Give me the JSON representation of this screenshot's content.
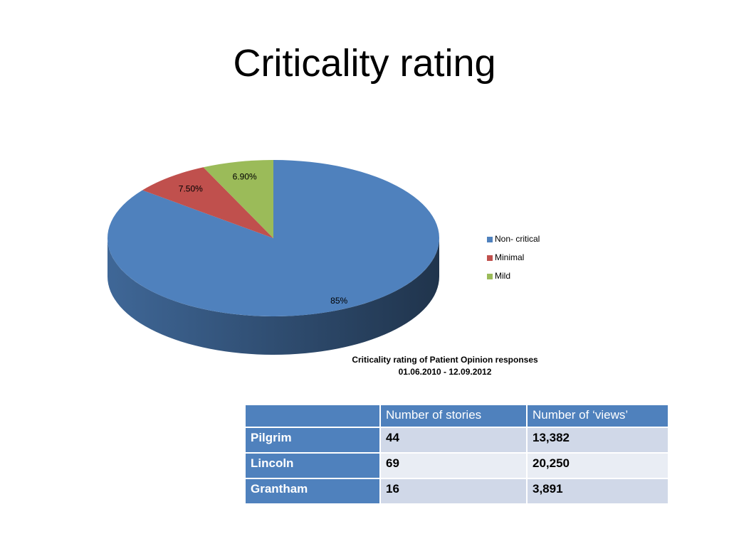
{
  "title": "Criticality rating",
  "chart_data": {
    "type": "pie",
    "categories": [
      "Non- critical",
      "Minimal",
      "Mild"
    ],
    "values": [
      85,
      7.5,
      6.9
    ],
    "value_labels": [
      "85%",
      "7.50%",
      "6.90%"
    ],
    "colors": [
      "#4f81bd",
      "#c0504d",
      "#9bbb59"
    ],
    "caption": [
      "Criticality rating of Patient Opinion responses",
      "01.06.2010 - 12.09.2012"
    ],
    "legend": "right"
  },
  "table": {
    "columns": [
      "Number of stories",
      "Number of ‘views’"
    ],
    "rows": [
      [
        "Pilgrim",
        "44",
        "13,382"
      ],
      [
        "Lincoln",
        "69",
        "20,250"
      ],
      [
        "Grantham",
        "16",
        "3,891"
      ]
    ]
  }
}
